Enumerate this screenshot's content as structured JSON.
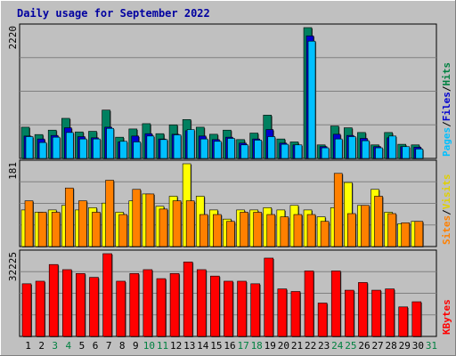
{
  "chart_data": {
    "type": "bar",
    "title": "Daily usage for September 2022",
    "days": [
      "1",
      "2",
      "3",
      "4",
      "5",
      "6",
      "7",
      "8",
      "9",
      "10",
      "11",
      "12",
      "13",
      "14",
      "15",
      "16",
      "17",
      "18",
      "19",
      "20",
      "21",
      "22",
      "23",
      "24",
      "25",
      "26",
      "27",
      "28",
      "29",
      "30",
      "31"
    ],
    "weekend_days": [
      "3",
      "4",
      "10",
      "11",
      "17",
      "18",
      "24",
      "25",
      "31"
    ],
    "panels": [
      {
        "id": "hits-files-pages",
        "ymax_label": "2220",
        "ymax": 2220,
        "legend": [
          "Pages",
          "/",
          "Files",
          "/",
          "Hits"
        ],
        "legend_colors": [
          "#00c0ff",
          "#000000",
          "#0000d0",
          "#000000",
          "#008040"
        ],
        "series": [
          {
            "name": "Hits",
            "color": "#008060",
            "values": [
              530,
              405,
              480,
              680,
              450,
              460,
              820,
              360,
              500,
              590,
              420,
              570,
              660,
              530,
              410,
              480,
              320,
              430,
              735,
              330,
              280,
              2220,
              230,
              550,
              520,
              440,
              230,
              440,
              240,
              230
            ]
          },
          {
            "name": "Files",
            "color": "#0000d0",
            "values": [
              380,
              330,
              390,
              520,
              370,
              350,
              530,
              280,
              380,
              420,
              330,
              410,
              470,
              380,
              320,
              360,
              260,
              330,
              490,
              260,
              230,
              2080,
              200,
              410,
              390,
              340,
              200,
              350,
              200,
              190
            ]
          },
          {
            "name": "Pages",
            "color": "#00c0ff",
            "values": [
              370,
              270,
              360,
              440,
              330,
              330,
              510,
              290,
              280,
              380,
              320,
              400,
              490,
              330,
              290,
              340,
              230,
              310,
              370,
              240,
              230,
              1990,
              180,
              330,
              370,
              300,
              180,
              380,
              200,
              160
            ]
          }
        ]
      },
      {
        "id": "visits-sites",
        "ymax_label": "181",
        "ymax": 181,
        "legend": [
          "Sites",
          "/",
          "Visits"
        ],
        "legend_colors": [
          "#ff8000",
          "#000000",
          "#e0d000"
        ],
        "series": [
          {
            "name": "Visits",
            "color": "#ffff00",
            "values": [
              80,
              75,
              80,
              90,
              80,
              85,
              95,
              75,
              100,
              115,
              88,
              110,
              181,
              110,
              80,
              60,
              80,
              80,
              85,
              80,
              90,
              80,
              65,
              85,
              140,
              90,
              125,
              75,
              50,
              55
            ]
          },
          {
            "name": "Sites",
            "color": "#ff8000",
            "values": [
              100,
              75,
              75,
              128,
              100,
              75,
              145,
              70,
              125,
              115,
              82,
              100,
              100,
              70,
              70,
              55,
              75,
              75,
              70,
              65,
              70,
              70,
              55,
              160,
              72,
              90,
              110,
              72,
              52,
              55
            ]
          }
        ]
      },
      {
        "id": "kbytes",
        "ymax_label": "32225",
        "ymax": 32225,
        "legend": [
          "KBytes"
        ],
        "legend_colors": [
          "#ff0000"
        ],
        "series": [
          {
            "name": "KBytes",
            "color": "#ff0000",
            "values": [
              20500,
              21500,
              28000,
              26000,
              24500,
              23000,
              32225,
              21500,
              24500,
              26000,
              22500,
              24500,
              29000,
              26000,
              23500,
              21500,
              21500,
              20500,
              30500,
              18500,
              17500,
              25500,
              13000,
              25500,
              18000,
              21000,
              18000,
              18500,
              11500,
              13500
            ]
          }
        ]
      }
    ]
  }
}
